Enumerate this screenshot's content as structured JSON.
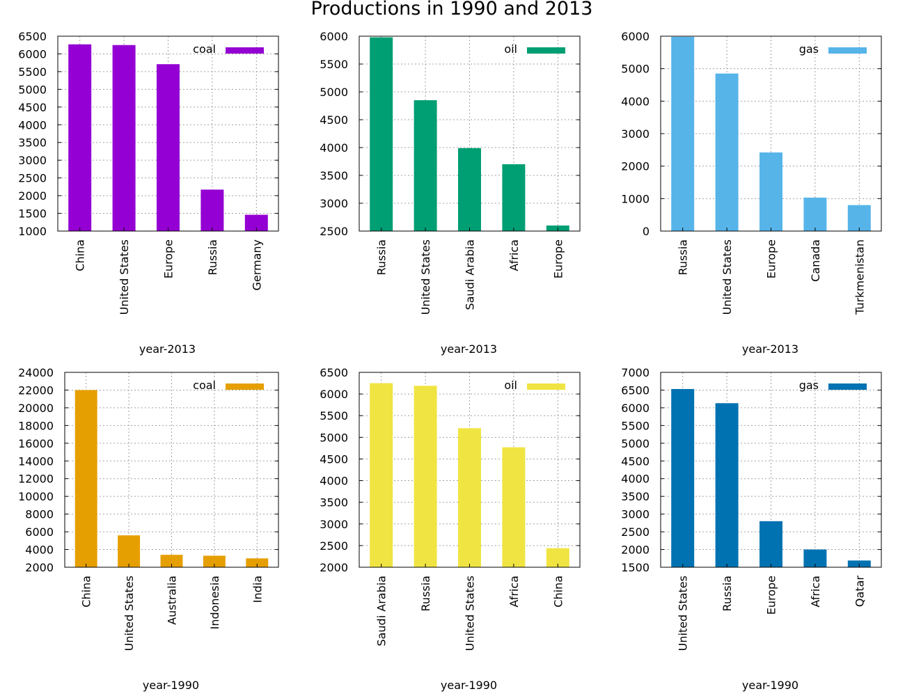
{
  "title": "Productions in 1990 and 2013",
  "chart_data": [
    {
      "type": "bar",
      "xlabel": "year-2013",
      "ylabel": "",
      "categories": [
        "China",
        "United States",
        "Europe",
        "Russia",
        "Germany"
      ],
      "series": [
        {
          "name": "coal",
          "values": [
            6270,
            6250,
            5710,
            2170,
            1460
          ],
          "color": "#9400d3"
        }
      ],
      "ylim": [
        1000,
        6500
      ],
      "yticks": [
        1000,
        1500,
        2000,
        2500,
        3000,
        3500,
        4000,
        4500,
        5000,
        5500,
        6000,
        6500
      ],
      "grid": true,
      "legend": "top-right"
    },
    {
      "type": "bar",
      "xlabel": "year-2013",
      "ylabel": "",
      "categories": [
        "Russia",
        "United States",
        "Saudi Arabia",
        "Africa",
        "Europe"
      ],
      "series": [
        {
          "name": "oil",
          "values": [
            5980,
            4850,
            3990,
            3700,
            2600
          ],
          "color": "#009e73"
        }
      ],
      "ylim": [
        2500,
        6000
      ],
      "yticks": [
        2500,
        3000,
        3500,
        4000,
        4500,
        5000,
        5500,
        6000
      ],
      "grid": true,
      "legend": "top-right"
    },
    {
      "type": "bar",
      "xlabel": "year-2013",
      "ylabel": "",
      "categories": [
        "Russia",
        "United States",
        "Europe",
        "Canada",
        "Turkmenistan"
      ],
      "series": [
        {
          "name": "gas",
          "values": [
            5980,
            4850,
            2420,
            1030,
            800
          ],
          "color": "#56b4e9"
        }
      ],
      "ylim": [
        0,
        6000
      ],
      "yticks": [
        0,
        1000,
        2000,
        3000,
        4000,
        5000,
        6000
      ],
      "grid": true,
      "legend": "top-right"
    },
    {
      "type": "bar",
      "xlabel": "year-1990",
      "ylabel": "",
      "categories": [
        "China",
        "United States",
        "Australia",
        "Indonesia",
        "India"
      ],
      "series": [
        {
          "name": "coal",
          "values": [
            22000,
            5600,
            3400,
            3300,
            3000
          ],
          "color": "#e69f00"
        }
      ],
      "ylim": [
        2000,
        24000
      ],
      "yticks": [
        2000,
        4000,
        6000,
        8000,
        10000,
        12000,
        14000,
        16000,
        18000,
        20000,
        22000,
        24000
      ],
      "grid": true,
      "legend": "top-right"
    },
    {
      "type": "bar",
      "xlabel": "year-1990",
      "ylabel": "",
      "categories": [
        "Saudi Arabia",
        "Russia",
        "United States",
        "Africa",
        "China"
      ],
      "series": [
        {
          "name": "oil",
          "values": [
            6250,
            6190,
            5210,
            4770,
            2440
          ],
          "color": "#f0e442"
        }
      ],
      "ylim": [
        2000,
        6500
      ],
      "yticks": [
        2000,
        2500,
        3000,
        3500,
        4000,
        4500,
        5000,
        5500,
        6000,
        6500
      ],
      "grid": true,
      "legend": "top-right"
    },
    {
      "type": "bar",
      "xlabel": "year-1990",
      "ylabel": "",
      "categories": [
        "United States",
        "Russia",
        "Europe",
        "Africa",
        "Qatar"
      ],
      "series": [
        {
          "name": "gas",
          "values": [
            6530,
            6130,
            2800,
            2000,
            1690
          ],
          "color": "#0072b2"
        }
      ],
      "ylim": [
        1500,
        7000
      ],
      "yticks": [
        1500,
        2000,
        2500,
        3000,
        3500,
        4000,
        4500,
        5000,
        5500,
        6000,
        6500,
        7000
      ],
      "grid": true,
      "legend": "top-right"
    }
  ]
}
